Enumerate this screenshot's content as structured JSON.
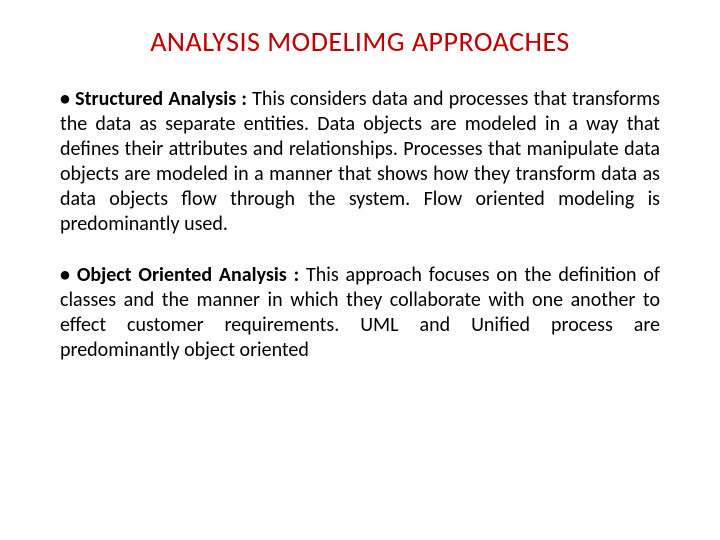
{
  "title_color": "#c00000",
  "body_color": "#000000",
  "title": "ANALYSIS MODELIMG APPROACHES",
  "items": [
    {
      "heading": "Structured Analysis : ",
      "body": "This considers data and processes that transforms the data as separate entities. Data objects are modeled in a way that defines their attributes and relationships. Processes that manipulate data objects are modeled in a manner that shows how they transform data as data objects flow through the system. Flow oriented modeling is predominantly used."
    },
    {
      "heading": "Object Oriented Analysis :  ",
      "body": "This approach focuses on the definition of classes and the manner in which they collaborate with one another to effect customer requirements. UML and Unified process are predominantly object oriented"
    }
  ]
}
